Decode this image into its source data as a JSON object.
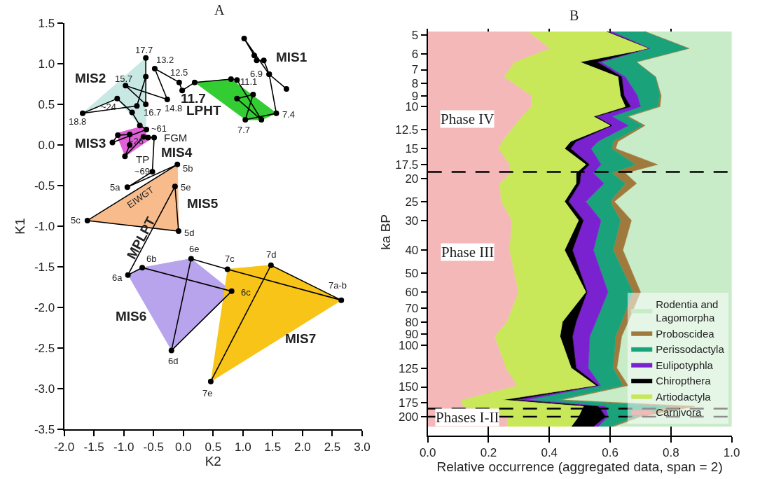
{
  "chart_data": [
    {
      "type": "scatter",
      "title": "A",
      "xlabel": "K2",
      "ylabel": "K1",
      "xlim": [
        -2,
        3
      ],
      "ylim": [
        -3.5,
        1.5
      ],
      "xticks": [
        {
          "value": -2,
          "label": "-2.0"
        },
        {
          "value": -1.5,
          "label": "-1.5"
        },
        {
          "value": -1,
          "label": "-1.0"
        },
        {
          "value": -0.5,
          "label": "-0.5"
        },
        {
          "value": 0,
          "label": "0.0"
        },
        {
          "value": 0.5,
          "label": "0.5"
        },
        {
          "value": 1,
          "label": "1.0"
        },
        {
          "value": 1.5,
          "label": "1.5"
        },
        {
          "value": 2,
          "label": "2.0"
        },
        {
          "value": 2.5,
          "label": "2.5"
        },
        {
          "value": 3,
          "label": "3.0"
        }
      ],
      "yticks": [
        {
          "value": -3.5,
          "label": "-3.5"
        },
        {
          "value": -3,
          "label": "-3.0"
        },
        {
          "value": -2.5,
          "label": "-2.5"
        },
        {
          "value": -2,
          "label": "-2.0"
        },
        {
          "value": -1.5,
          "label": "-1.5"
        },
        {
          "value": -1,
          "label": "-1.0"
        },
        {
          "value": -0.5,
          "label": "-0.5"
        },
        {
          "value": 0,
          "label": "0.0"
        },
        {
          "value": 0.5,
          "label": "0.5"
        },
        {
          "value": 1,
          "label": "1.0"
        },
        {
          "value": 1.5,
          "label": "1.5"
        }
      ],
      "legend": false,
      "grid": false,
      "series": [
        {
          "type": "area",
          "color": "#c8e8e4",
          "x": [
            -1.69,
            -0.63,
            -0.63,
            -0.73,
            -1.11
          ],
          "values": [
            0.39,
            1.07,
            0.19,
            0.24,
            0.57
          ]
        },
        {
          "type": "area",
          "color": "#33cc33",
          "x": [
            0.19,
            0.8,
            1.56,
            1.31,
            1.04
          ],
          "values": [
            0.77,
            0.81,
            0.39,
            0.31,
            0.31
          ]
        },
        {
          "type": "area",
          "color": "#e060d8",
          "x": [
            -1.13,
            -0.68,
            -0.58,
            -0.98
          ],
          "values": [
            0.14,
            0.23,
            0.06,
            -0.14
          ]
        },
        {
          "type": "area",
          "color": "#f8bc8c",
          "x": [
            -0.1,
            -0.08,
            -1.61
          ],
          "values": [
            -0.24,
            -1.06,
            -0.93
          ]
        },
        {
          "type": "area",
          "color": "#b8a4ec",
          "x": [
            -0.93,
            -0.69,
            0.13,
            0.81,
            -0.2
          ],
          "values": [
            -1.6,
            -1.51,
            -1.4,
            -1.8,
            -2.53
          ]
        },
        {
          "type": "area",
          "color": "#f8c418",
          "x": [
            0.74,
            1.47,
            2.65,
            0.46
          ],
          "values": [
            -1.53,
            -1.48,
            -1.91,
            -2.91
          ]
        },
        {
          "type": "line",
          "color": "#000000",
          "marker": "circle",
          "x": [
            1.73,
            1.44,
            1.35,
            1.23,
            1.19,
            1.02,
            1.44,
            1.56,
            1.04,
            1.17,
            0.9,
            1.31,
            0.9,
            0.8,
            0.19,
            -0.02,
            -0.07,
            -0.48,
            -0.27,
            -0.97,
            -0.63,
            -0.63,
            -0.63,
            -0.78,
            -1.69,
            -1.11,
            -0.86,
            -0.73,
            -0.62,
            -1.19,
            -1.1,
            -0.9,
            -0.9,
            -0.98,
            -0.67,
            -0.59,
            -0.49,
            -0.52,
            -0.94,
            -0.1,
            -1.61,
            -0.08,
            -0.14,
            -0.93,
            -0.69,
            0.81,
            -0.2,
            0.13,
            0.74,
            2.65,
            1.47,
            0.46
          ],
          "values": [
            0.69,
            0.87,
            1.04,
            1.04,
            1.1,
            1.31,
            0.87,
            0.39,
            0.31,
            0.62,
            0.57,
            0.31,
            0.8,
            0.81,
            0.77,
            0.67,
            0.77,
            0.94,
            0.56,
            0.73,
            0.5,
            1.07,
            0.84,
            0.48,
            0.39,
            0.57,
            0.4,
            0.24,
            0.19,
            0.03,
            0.12,
            0.13,
            0.0,
            -0.14,
            0.1,
            0.09,
            0.09,
            -0.33,
            -0.52,
            -0.24,
            -0.93,
            -1.06,
            -0.51,
            -1.6,
            -1.51,
            -1.8,
            -2.53,
            -1.4,
            -1.53,
            -1.91,
            -1.48,
            -2.91
          ]
        }
      ],
      "annotations": [
        {
          "text": "17.7",
          "x": -0.63,
          "y": 1.07
        },
        {
          "text": "13.2",
          "x": -0.48,
          "y": 0.94
        },
        {
          "text": "12.5",
          "x": -0.07,
          "y": 0.77
        },
        {
          "text": "15.7",
          "x": -0.97,
          "y": 0.73
        },
        {
          "text": "~24",
          "x": -1.11,
          "y": 0.57
        },
        {
          "text": "18.8",
          "x": -1.69,
          "y": 0.39
        },
        {
          "text": "16.7",
          "x": -0.63,
          "y": 0.5
        },
        {
          "text": "14.8",
          "x": -0.27,
          "y": 0.56
        },
        {
          "text": "11.1",
          "x": 0.9,
          "y": 0.8
        },
        {
          "text": "6.9",
          "x": 1.44,
          "y": 0.87
        },
        {
          "text": "7.4",
          "x": 1.56,
          "y": 0.39
        },
        {
          "text": "7.7",
          "x": 1.04,
          "y": 0.31
        },
        {
          "text": "~61",
          "x": -0.62,
          "y": 0.19
        },
        {
          "text": "FGM",
          "x": -0.49,
          "y": 0.09
        },
        {
          "text": "~26",
          "x": -0.9,
          "y": 0.0
        },
        {
          "text": "TP",
          "x": -0.52,
          "y": -0.33
        },
        {
          "text": "~69",
          "x": -0.52,
          "y": -0.33
        },
        {
          "text": "5b",
          "x": -0.1,
          "y": -0.24
        },
        {
          "text": "5a",
          "x": -0.94,
          "y": -0.52
        },
        {
          "text": "5e",
          "x": -0.14,
          "y": -0.51
        },
        {
          "text": "5c",
          "x": -1.61,
          "y": -0.93
        },
        {
          "text": "5d",
          "x": -0.08,
          "y": -1.06
        },
        {
          "text": "6e",
          "x": 0.13,
          "y": -1.4
        },
        {
          "text": "6b",
          "x": -0.69,
          "y": -1.51
        },
        {
          "text": "6a",
          "x": -0.93,
          "y": -1.6
        },
        {
          "text": "7c",
          "x": 0.74,
          "y": -1.53
        },
        {
          "text": "7d",
          "x": 1.47,
          "y": -1.48
        },
        {
          "text": "7a-b",
          "x": 2.65,
          "y": -1.91
        },
        {
          "text": "6c",
          "x": 0.81,
          "y": -1.8
        },
        {
          "text": "6d",
          "x": -0.2,
          "y": -2.53
        },
        {
          "text": "7e",
          "x": 0.46,
          "y": -2.91
        },
        {
          "text": "EIWGT",
          "x": -0.94,
          "y": -0.52
        },
        {
          "text": "MIS2",
          "x": -1.69,
          "y": 0.39
        },
        {
          "text": "11.7",
          "x": -0.02,
          "y": 0.67
        },
        {
          "text": "LPHT",
          "x": -0.02,
          "y": 0.67
        },
        {
          "text": "MIS1",
          "x": 1.35,
          "y": 1.04
        },
        {
          "text": "MIS3",
          "x": -1.19,
          "y": 0.03
        },
        {
          "text": "MIS4",
          "x": -0.49,
          "y": 0.09
        },
        {
          "text": "MIS5",
          "x": -0.14,
          "y": -0.51
        },
        {
          "text": "MPLPT",
          "x": -0.93,
          "y": -1.6
        },
        {
          "text": "MIS6",
          "x": -0.93,
          "y": -1.6
        },
        "MIS7"
      ]
    },
    {
      "type": "area",
      "stacked": true,
      "orientation": "horizontal",
      "title": "B",
      "xlabel": "Relative occurrence (aggregated data, span = 2)",
      "ylabel": "ka BP",
      "log": "y",
      "xlim": [
        0,
        1
      ],
      "ylim": [
        240,
        4.7
      ],
      "xticks": [
        {
          "value": 0,
          "label": "0.0"
        },
        {
          "value": 0.2,
          "label": "0.2"
        },
        {
          "value": 0.4,
          "label": "0.4"
        },
        {
          "value": 0.6,
          "label": "0.6"
        },
        {
          "value": 0.8,
          "label": "0.8"
        },
        {
          "value": 1,
          "label": "1.0"
        }
      ],
      "yticks": [
        5,
        6,
        7,
        8,
        9,
        10,
        12.5,
        15,
        17.5,
        20,
        25,
        30,
        40,
        50,
        60,
        70,
        80,
        90,
        100,
        125,
        150,
        175,
        200
      ],
      "grid": "x",
      "legend": "bottom right",
      "x": [
        4.84,
        5.7,
        6.5,
        7.5,
        9,
        10,
        11,
        12,
        14,
        15,
        17.5,
        19,
        21,
        25,
        30,
        40,
        60,
        80,
        92,
        125,
        148,
        170,
        181,
        200,
        220
      ],
      "series": [
        {
          "name": "Carnivora",
          "color": "#f4b8b8",
          "values": [
            0.33,
            0.4,
            0.285,
            0.25,
            0.34,
            0.34,
            0.31,
            0.285,
            0.244,
            0.232,
            0.268,
            0.272,
            0.236,
            0.24,
            0.276,
            0.268,
            0.297,
            0.26,
            0.22,
            0.256,
            0.293,
            0.11,
            0.114,
            0.26,
            0.26
          ]
        },
        {
          "name": "Artiodactyla",
          "color": "#c8e85a",
          "values": [
            0.26,
            0.33,
            0.215,
            0.376,
            0.294,
            0.31,
            0.235,
            0.315,
            0.226,
            0.218,
            0.252,
            0.216,
            0.252,
            0.21,
            0.22,
            0.182,
            0.223,
            0.183,
            0.215,
            0.216,
            0.26,
            0.134,
            0.398,
            0.236,
            0.212
          ]
        },
        {
          "name": "Chiropthera",
          "color": "#000000",
          "values": [
            0,
            0,
            0.057,
            0.012,
            0.012,
            0.017,
            0.008,
            0.006,
            0.018,
            0.02,
            0.012,
            0.016,
            0.012,
            0.013,
            0.016,
            0.026,
            0.004,
            0.045,
            0.041,
            0.016,
            0.008,
            0.041,
            0.049,
            0.089,
            0.073
          ]
        },
        {
          "name": "Eulipotyphla",
          "color": "#7a22d0",
          "values": [
            0.016,
            0,
            0.013,
            0.012,
            0.044,
            0.033,
            0.053,
            0.054,
            0.072,
            0.067,
            0.038,
            0.041,
            0.08,
            0.057,
            0.058,
            0.069,
            0.069,
            0.065,
            0.057,
            0.04,
            0.008,
            0.04,
            0.024,
            0.008,
            0.016
          ]
        },
        {
          "name": "Perissodactyla",
          "color": "#1aa37a",
          "values": [
            0.109,
            0.13,
            0.117,
            0.1,
            0.074,
            0.056,
            0.048,
            0.047,
            0.05,
            0.069,
            0.113,
            0.061,
            0.07,
            0.08,
            0.064,
            0.065,
            0.082,
            0.085,
            0.085,
            0.082,
            0.073,
            0.105,
            0.204,
            0.09,
            0.041
          ]
        },
        {
          "name": "Proboscidea",
          "color": "#a07a3c",
          "values": [
            0,
            0,
            0,
            0,
            0.004,
            0.008,
            0.006,
            0.008,
            0.016,
            0.012,
            0.073,
            0.044,
            0.037,
            0.014,
            0.036,
            0.032,
            0.025,
            0.021,
            0.02,
            0.012,
            0.017,
            0.01,
            0.089,
            0.017,
            0.008
          ]
        },
        {
          "name": "Rodentia and Lagomorpha",
          "color": "#c8ecc8",
          "values": [
            0.285,
            0.14,
            0.313,
            0.25,
            0.232,
            0.236,
            0.34,
            0.285,
            0.374,
            0.382,
            0.244,
            0.35,
            0.313,
            0.386,
            0.33,
            0.358,
            0.3,
            0.341,
            0.362,
            0.378,
            0.341,
            0.56,
            0.122,
            0.3,
            0.39
          ]
        }
      ],
      "ref_lines": [
        {
          "axis": "y",
          "value": 18.8,
          "line_style": "dashed",
          "color": "#000000"
        },
        {
          "axis": "y",
          "value": 185,
          "line_style": "dashed",
          "color": "#000000"
        },
        {
          "axis": "y",
          "value": 200,
          "line_style": "dashed",
          "color": "#000000"
        }
      ],
      "annotations": [
        "Phase IV",
        "Phase III",
        "Phases I-II"
      ]
    }
  ]
}
